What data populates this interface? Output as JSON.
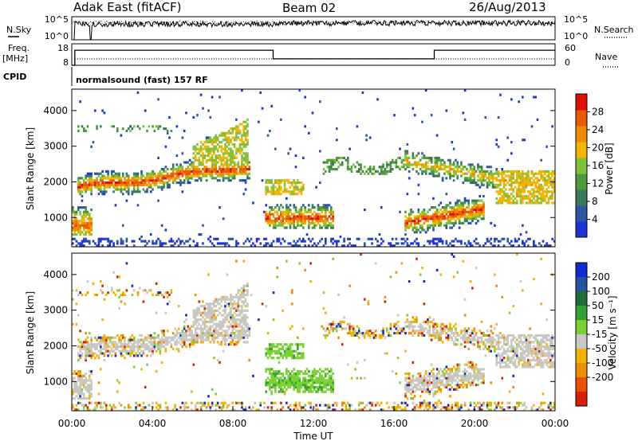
{
  "header": {
    "radar": "Adak East (fitACF)",
    "beam": "Beam 02",
    "date": "26/Aug/2013"
  },
  "top_panels": {
    "nsky_label": "N.Sky",
    "nsearch_label": "N.Search",
    "noise_ticks": [
      "10^5",
      "10^0"
    ],
    "freq_label": "Freq.",
    "freq_unit": "[MHz]",
    "freq_ticks": [
      "18",
      "8"
    ],
    "nave_label": "Nave",
    "nave_ticks": [
      "60",
      "0"
    ],
    "cpid_label": "CPID",
    "cpid_value": "normalsound (fast) 157 RF"
  },
  "colors": {
    "power": [
      "#1e32dc",
      "#2f55a8",
      "#3a7a55",
      "#4f9a3a",
      "#7fc23a",
      "#f5b400",
      "#f08a00",
      "#e85a00",
      "#e01000"
    ],
    "velocity": [
      "#1428d2",
      "#2850a0",
      "#1e6e3c",
      "#37a032",
      "#78d232",
      "#c8c8c8",
      "#f0b400",
      "#f08c00",
      "#e65000",
      "#dc1e00"
    ],
    "ground_scatter": "#c8c8c0"
  },
  "chart_data": [
    {
      "type": "line",
      "title": "N.Sky / N.Search",
      "x": [
        "00:00",
        "01:00",
        "02:00",
        "04:00",
        "06:00",
        "08:00",
        "10:00",
        "12:00",
        "14:00",
        "16:00",
        "18:00",
        "20:00",
        "22:00",
        "24:00"
      ],
      "series": [
        {
          "name": "N.Sky",
          "values": [
            1,
            1000,
            3000,
            5000,
            6000,
            8000,
            10000,
            9000,
            7000,
            8000,
            9000,
            10000,
            9000,
            8000
          ]
        }
      ],
      "yscale": "log",
      "ylim": [
        1,
        100000
      ]
    },
    {
      "type": "line",
      "title": "Freq. / Nave",
      "x": [
        "00:00",
        "01:00",
        "10:00",
        "18:00",
        "24:00"
      ],
      "series": [
        {
          "name": "Freq.",
          "values": [
            15,
            15,
            11,
            15,
            15
          ]
        }
      ],
      "ylim": [
        8,
        18
      ]
    },
    {
      "type": "heatmap",
      "xlabel": "",
      "ylabel": "Slant Range [km]",
      "xlim": [
        "00:00",
        "24:00"
      ],
      "ylim": [
        180,
        4600
      ],
      "yticks": [
        1000,
        2000,
        3000,
        4000
      ],
      "colorbar": {
        "label": "Power [dB]",
        "ticks": [
          4,
          8,
          12,
          16,
          20,
          24,
          28
        ],
        "range": [
          0,
          32
        ]
      },
      "features": [
        {
          "name": "morning_echoes",
          "t_start": 0.5,
          "t_end": 9.0,
          "range_start_km": 1700,
          "range_end_km": 3000,
          "peak_dB": 20
        },
        {
          "name": "early_near_range",
          "t_start": 0.0,
          "t_end": 1.0,
          "range_start_km": 600,
          "range_end_km": 1300,
          "peak_dB": 28
        },
        {
          "name": "midday_patch",
          "t_start": 9.5,
          "t_end": 13.0,
          "range_start_km": 800,
          "range_end_km": 1300,
          "peak_dB": 24
        },
        {
          "name": "evening_echoes",
          "t_start": 16.5,
          "t_end": 24.0,
          "range_start_km": 700,
          "range_end_km": 2800,
          "peak_dB": 28
        }
      ]
    },
    {
      "type": "heatmap",
      "xlabel": "Time UT",
      "ylabel": "Slant Range [km]",
      "xlim": [
        "00:00",
        "24:00"
      ],
      "ylim": [
        180,
        4600
      ],
      "yticks": [
        1000,
        2000,
        3000,
        4000
      ],
      "xticks": [
        "00:00",
        "04:00",
        "08:00",
        "12:00",
        "16:00",
        "20:00",
        "00:00"
      ],
      "colorbar": {
        "label": "Velocity [m s⁻¹]",
        "ticks": [
          200,
          100,
          50,
          15,
          -15,
          -50,
          -100,
          -200
        ],
        "range": [
          -250,
          250
        ]
      },
      "features": [
        {
          "name": "ground_scatter",
          "t_start": 0.0,
          "t_end": 9.0,
          "velocity_ms": 0
        },
        {
          "name": "midday_positive",
          "t_start": 9.5,
          "t_end": 13.0,
          "velocity_ms": 40
        },
        {
          "name": "evening_ground_scatter",
          "t_start": 16.5,
          "t_end": 24.0,
          "velocity_ms": 0
        }
      ]
    }
  ]
}
